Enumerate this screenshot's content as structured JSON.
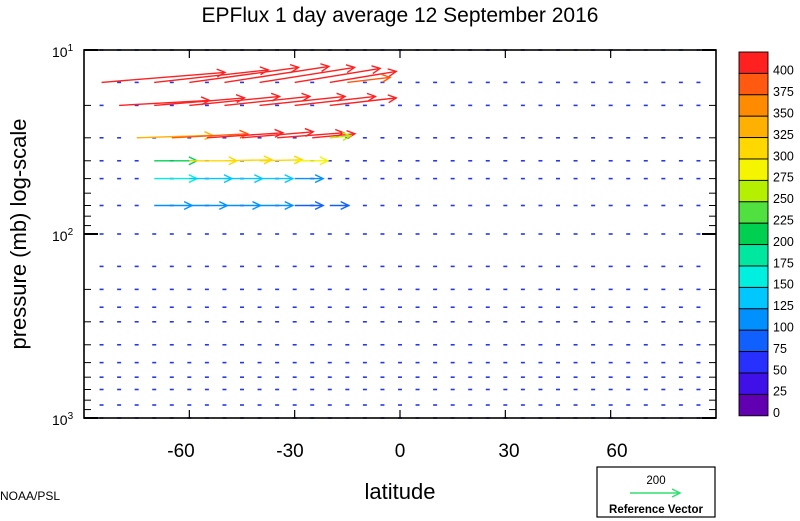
{
  "chart_data": {
    "type": "vector field",
    "title": "EPFlux  1 day average  12 September 2016",
    "xlabel": "latitude",
    "ylabel": "pressure (mb)  log-scale",
    "x_ticks": [
      -60,
      -30,
      0,
      30,
      60
    ],
    "xlim": [
      -90,
      90
    ],
    "y_scale": "log",
    "ylim_mb": [
      1000,
      10
    ],
    "y_ticks": [
      {
        "base": "10",
        "exp": "1",
        "value": 10
      },
      {
        "base": "10",
        "exp": "2",
        "value": 100
      },
      {
        "base": "10",
        "exp": "3",
        "value": 1000
      }
    ],
    "latitudes": [
      -85,
      -80,
      -75,
      -70,
      -65,
      -60,
      -55,
      -50,
      -45,
      -40,
      -35,
      -30,
      -25,
      -20,
      -15,
      -10,
      -5,
      0,
      5,
      10,
      15,
      20,
      25,
      30,
      35,
      40,
      45,
      50,
      55,
      60,
      65,
      70,
      75,
      80,
      85
    ],
    "pressure_levels_mb": [
      10,
      15,
      20,
      30,
      40,
      50,
      70,
      100,
      150,
      200,
      250,
      300,
      400,
      500,
      600,
      700,
      850,
      1000
    ],
    "colorbar": {
      "levels": [
        "400",
        "375",
        "350",
        "325",
        "300",
        "275",
        "250",
        "225",
        "200",
        "175",
        "150",
        "125",
        "100",
        "75",
        "50",
        "25",
        "0"
      ],
      "colors": [
        "#ff2020",
        "#ff5a10",
        "#ff8c00",
        "#ffb000",
        "#ffd800",
        "#f5f500",
        "#b4f000",
        "#50e040",
        "#00d050",
        "#00e8a0",
        "#00f0e0",
        "#00c8ff",
        "#0090ff",
        "#1060ff",
        "#2830ff",
        "#4010e8",
        "#6000b0"
      ]
    },
    "reference_vector": {
      "magnitude": "200",
      "label": "Reference Vector",
      "color": "#30e070"
    },
    "vectors": [
      {
        "lat": -85,
        "p": 15,
        "u": 130,
        "v": -20,
        "mag": 420
      },
      {
        "lat": -70,
        "p": 15,
        "u": 120,
        "v": -25,
        "mag": 410
      },
      {
        "lat": -60,
        "p": 15,
        "u": 115,
        "v": -30,
        "mag": 400
      },
      {
        "lat": -50,
        "p": 15,
        "u": 110,
        "v": -32,
        "mag": 400
      },
      {
        "lat": -40,
        "p": 15,
        "u": 100,
        "v": -30,
        "mag": 400
      },
      {
        "lat": -30,
        "p": 15,
        "u": 90,
        "v": -28,
        "mag": 400
      },
      {
        "lat": -20,
        "p": 15,
        "u": 70,
        "v": -22,
        "mag": 400
      },
      {
        "lat": -15,
        "p": 15,
        "u": 45,
        "v": -10,
        "mag": 380
      },
      {
        "lat": -80,
        "p": 20,
        "u": 95,
        "v": -10,
        "mag": 400
      },
      {
        "lat": -70,
        "p": 20,
        "u": 95,
        "v": -15,
        "mag": 400
      },
      {
        "lat": -60,
        "p": 20,
        "u": 95,
        "v": -18,
        "mag": 400
      },
      {
        "lat": -50,
        "p": 20,
        "u": 90,
        "v": -18,
        "mag": 400
      },
      {
        "lat": -40,
        "p": 20,
        "u": 90,
        "v": -18,
        "mag": 400
      },
      {
        "lat": -30,
        "p": 20,
        "u": 85,
        "v": -18,
        "mag": 400
      },
      {
        "lat": -20,
        "p": 20,
        "u": 70,
        "v": -15,
        "mag": 400
      },
      {
        "lat": -75,
        "p": 30,
        "u": 80,
        "v": -5,
        "mag": 330
      },
      {
        "lat": -65,
        "p": 30,
        "u": 80,
        "v": -8,
        "mag": 380
      },
      {
        "lat": -55,
        "p": 30,
        "u": 80,
        "v": -10,
        "mag": 400
      },
      {
        "lat": -45,
        "p": 30,
        "u": 75,
        "v": -12,
        "mag": 400
      },
      {
        "lat": -35,
        "p": 30,
        "u": 70,
        "v": -10,
        "mag": 400
      },
      {
        "lat": -25,
        "p": 30,
        "u": 45,
        "v": -8,
        "mag": 400
      },
      {
        "lat": -20,
        "p": 30,
        "u": 22,
        "v": -4,
        "mag": 250
      },
      {
        "lat": -70,
        "p": 40,
        "u": 45,
        "v": 0,
        "mag": 220
      },
      {
        "lat": -60,
        "p": 40,
        "u": 50,
        "v": 0,
        "mag": 300
      },
      {
        "lat": -50,
        "p": 40,
        "u": 50,
        "v": -2,
        "mag": 320
      },
      {
        "lat": -40,
        "p": 40,
        "u": 45,
        "v": -2,
        "mag": 300
      },
      {
        "lat": -30,
        "p": 40,
        "u": 35,
        "v": 0,
        "mag": 280
      },
      {
        "lat": -70,
        "p": 50,
        "u": 45,
        "v": 0,
        "mag": 150
      },
      {
        "lat": -60,
        "p": 50,
        "u": 45,
        "v": 0,
        "mag": 140
      },
      {
        "lat": -50,
        "p": 50,
        "u": 40,
        "v": 0,
        "mag": 130
      },
      {
        "lat": -40,
        "p": 50,
        "u": 35,
        "v": 0,
        "mag": 130
      },
      {
        "lat": -30,
        "p": 50,
        "u": 30,
        "v": 0,
        "mag": 120
      },
      {
        "lat": -70,
        "p": 70,
        "u": 40,
        "v": 0,
        "mag": 110
      },
      {
        "lat": -60,
        "p": 70,
        "u": 40,
        "v": 0,
        "mag": 105
      },
      {
        "lat": -50,
        "p": 70,
        "u": 38,
        "v": 0,
        "mag": 100
      },
      {
        "lat": -40,
        "p": 70,
        "u": 35,
        "v": 0,
        "mag": 100
      },
      {
        "lat": -30,
        "p": 70,
        "u": 30,
        "v": 0,
        "mag": 95
      },
      {
        "lat": -20,
        "p": 70,
        "u": 20,
        "v": 0,
        "mag": 90
      }
    ]
  },
  "footer": {
    "credit": "NOAA/PSL"
  }
}
